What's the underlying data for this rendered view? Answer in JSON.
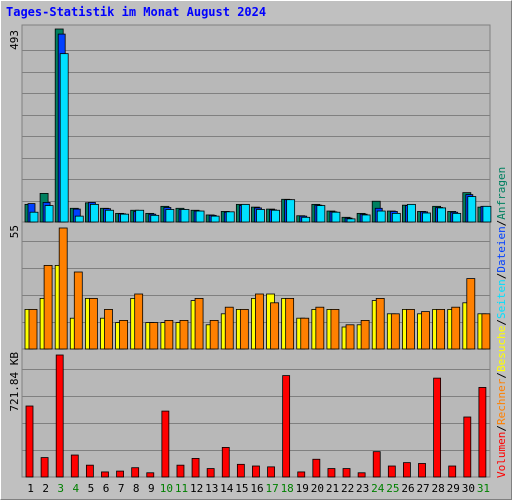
{
  "chart_title": "Tages-Statistik im Monat August 2024",
  "colors": {
    "background": "#c0c0c0",
    "plot": "#b8b8b8",
    "grid": "#808080",
    "title": "#0000ff",
    "anfragen": "#008060",
    "dateien": "#0040ff",
    "seiten": "#00e0ff",
    "besuche": "#ffff00",
    "rechner": "#ff8000",
    "volumen": "#ff0000",
    "axis_text": "#000000",
    "weekend_text": "#008000"
  },
  "chart_data": [
    {
      "type": "bar",
      "panel": "requests",
      "y_tick_label": "493",
      "ylim": [
        0,
        493
      ],
      "x": [
        1,
        2,
        3,
        4,
        5,
        6,
        7,
        8,
        9,
        10,
        11,
        12,
        13,
        14,
        15,
        16,
        17,
        18,
        19,
        20,
        21,
        22,
        23,
        24,
        25,
        26,
        27,
        28,
        29,
        30,
        31
      ],
      "series": [
        {
          "name": "Anfragen",
          "values": [
            45,
            73,
            493,
            35,
            49,
            35,
            22,
            30,
            22,
            40,
            35,
            30,
            18,
            27,
            45,
            38,
            33,
            58,
            16,
            45,
            28,
            12,
            22,
            53,
            28,
            43,
            27,
            40,
            27,
            75,
            38
          ]
        },
        {
          "name": "Dateien",
          "values": [
            47,
            50,
            480,
            33,
            50,
            34,
            21,
            27,
            20,
            37,
            32,
            28,
            17,
            25,
            42,
            36,
            31,
            57,
            15,
            43,
            26,
            10,
            20,
            35,
            27,
            42,
            26,
            37,
            25,
            70,
            40
          ]
        },
        {
          "name": "Seiten",
          "values": [
            25,
            42,
            430,
            15,
            45,
            30,
            20,
            30,
            17,
            32,
            32,
            28,
            15,
            26,
            45,
            32,
            30,
            57,
            12,
            42,
            25,
            8,
            18,
            28,
            22,
            45,
            23,
            36,
            22,
            65,
            40
          ]
        }
      ]
    },
    {
      "type": "bar",
      "panel": "visits",
      "y_tick_label": "55",
      "ylim": [
        0,
        55
      ],
      "x": [
        1,
        2,
        3,
        4,
        5,
        6,
        7,
        8,
        9,
        10,
        11,
        12,
        13,
        14,
        15,
        16,
        17,
        18,
        19,
        20,
        21,
        22,
        23,
        24,
        25,
        26,
        27,
        28,
        29,
        30,
        31
      ],
      "series": [
        {
          "name": "Besuche",
          "values": [
            18,
            23,
            38,
            14,
            23,
            14,
            12,
            23,
            12,
            12,
            12,
            22,
            11,
            16,
            18,
            23,
            25,
            23,
            14,
            18,
            18,
            10,
            11,
            22,
            16,
            18,
            16,
            18,
            18,
            21,
            16
          ]
        },
        {
          "name": "Rechner",
          "values": [
            18,
            38,
            55,
            35,
            23,
            18,
            13,
            25,
            12,
            13,
            13,
            23,
            13,
            19,
            18,
            25,
            21,
            23,
            14,
            19,
            18,
            11,
            13,
            23,
            16,
            18,
            17,
            18,
            19,
            32,
            16
          ]
        }
      ]
    },
    {
      "type": "bar",
      "panel": "volume",
      "y_tick_label": "721.84 KB",
      "ylim": [
        0,
        721.84
      ],
      "x": [
        1,
        2,
        3,
        4,
        5,
        6,
        7,
        8,
        9,
        10,
        11,
        12,
        13,
        14,
        15,
        16,
        17,
        18,
        19,
        20,
        21,
        22,
        23,
        24,
        25,
        26,
        27,
        28,
        29,
        30,
        31
      ],
      "series": [
        {
          "name": "Volumen",
          "values": [
            420,
            115,
            721.84,
            130,
            70,
            30,
            35,
            55,
            25,
            390,
            70,
            110,
            50,
            175,
            75,
            65,
            60,
            600,
            30,
            105,
            50,
            50,
            25,
            150,
            65,
            85,
            80,
            585,
            65,
            355,
            530
          ]
        }
      ]
    }
  ],
  "legend": [
    {
      "label": "Volumen",
      "color": "#ff0000"
    },
    {
      "label": "/",
      "color": "#000000"
    },
    {
      "label": "Rechner",
      "color": "#ff8000"
    },
    {
      "label": "/",
      "color": "#000000"
    },
    {
      "label": "Besuche",
      "color": "#ffff00"
    },
    {
      "label": "/",
      "color": "#000000"
    },
    {
      "label": "Seiten",
      "color": "#00e0ff"
    },
    {
      "label": "/",
      "color": "#000000"
    },
    {
      "label": "Dateien",
      "color": "#0040ff"
    },
    {
      "label": "/",
      "color": "#000000"
    },
    {
      "label": "Anfragen",
      "color": "#008060"
    }
  ],
  "x_labels": [
    {
      "text": "1",
      "weekend": false
    },
    {
      "text": "2",
      "weekend": false
    },
    {
      "text": "3",
      "weekend": true
    },
    {
      "text": "4",
      "weekend": true
    },
    {
      "text": "5",
      "weekend": false
    },
    {
      "text": "6",
      "weekend": false
    },
    {
      "text": "7",
      "weekend": false
    },
    {
      "text": "8",
      "weekend": false
    },
    {
      "text": "9",
      "weekend": false
    },
    {
      "text": "10",
      "weekend": true
    },
    {
      "text": "11",
      "weekend": true
    },
    {
      "text": "12",
      "weekend": false
    },
    {
      "text": "13",
      "weekend": false
    },
    {
      "text": "14",
      "weekend": false
    },
    {
      "text": "15",
      "weekend": false
    },
    {
      "text": "16",
      "weekend": false
    },
    {
      "text": "17",
      "weekend": true
    },
    {
      "text": "18",
      "weekend": true
    },
    {
      "text": "19",
      "weekend": false
    },
    {
      "text": "20",
      "weekend": false
    },
    {
      "text": "21",
      "weekend": false
    },
    {
      "text": "22",
      "weekend": false
    },
    {
      "text": "23",
      "weekend": false
    },
    {
      "text": "24",
      "weekend": true
    },
    {
      "text": "25",
      "weekend": true
    },
    {
      "text": "26",
      "weekend": false
    },
    {
      "text": "27",
      "weekend": false
    },
    {
      "text": "28",
      "weekend": false
    },
    {
      "text": "29",
      "weekend": false
    },
    {
      "text": "30",
      "weekend": false
    },
    {
      "text": "31",
      "weekend": true
    }
  ]
}
